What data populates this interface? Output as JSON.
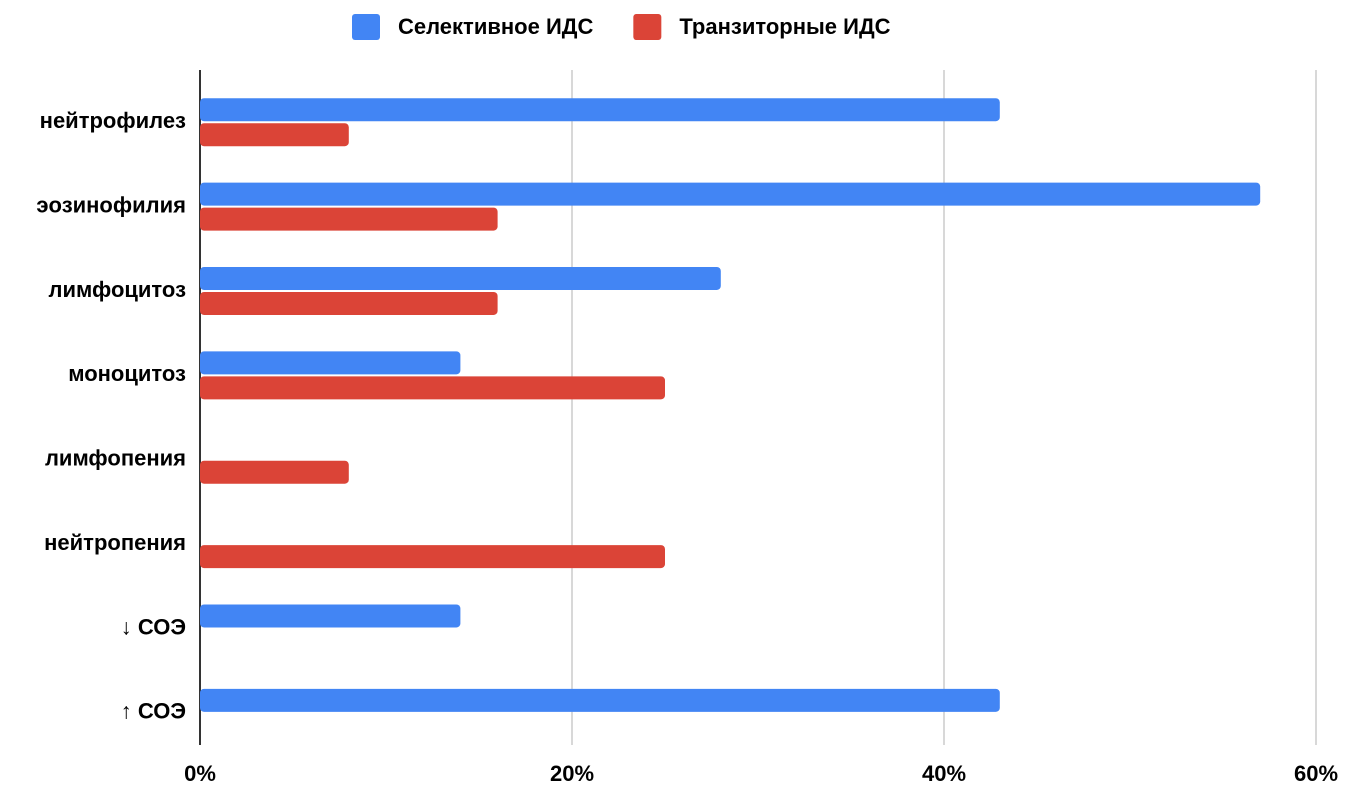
{
  "chart_data": {
    "type": "bar",
    "orientation": "horizontal",
    "categories": [
      "нейтрофилез",
      "эозинофилия",
      "лимфоцитоз",
      "моноцитоз",
      "лимфопения",
      "нейтропения",
      "↓ СОЭ",
      "↑ СОЭ"
    ],
    "series": [
      {
        "name": "Селективное ИДС",
        "color": "#4285f4",
        "values": [
          43,
          57,
          28,
          14,
          0,
          0,
          14,
          43
        ]
      },
      {
        "name": "Транзиторные ИДС",
        "color": "#db4437",
        "values": [
          8,
          16,
          16,
          25,
          8,
          25,
          0,
          0
        ]
      }
    ],
    "xlim": [
      0,
      60
    ],
    "xticks": [
      {
        "value": 0,
        "label": "0%"
      },
      {
        "value": 20,
        "label": "20%"
      },
      {
        "value": 40,
        "label": "40%"
      },
      {
        "value": 60,
        "label": "60%"
      }
    ],
    "grid": true,
    "legend": "top"
  }
}
